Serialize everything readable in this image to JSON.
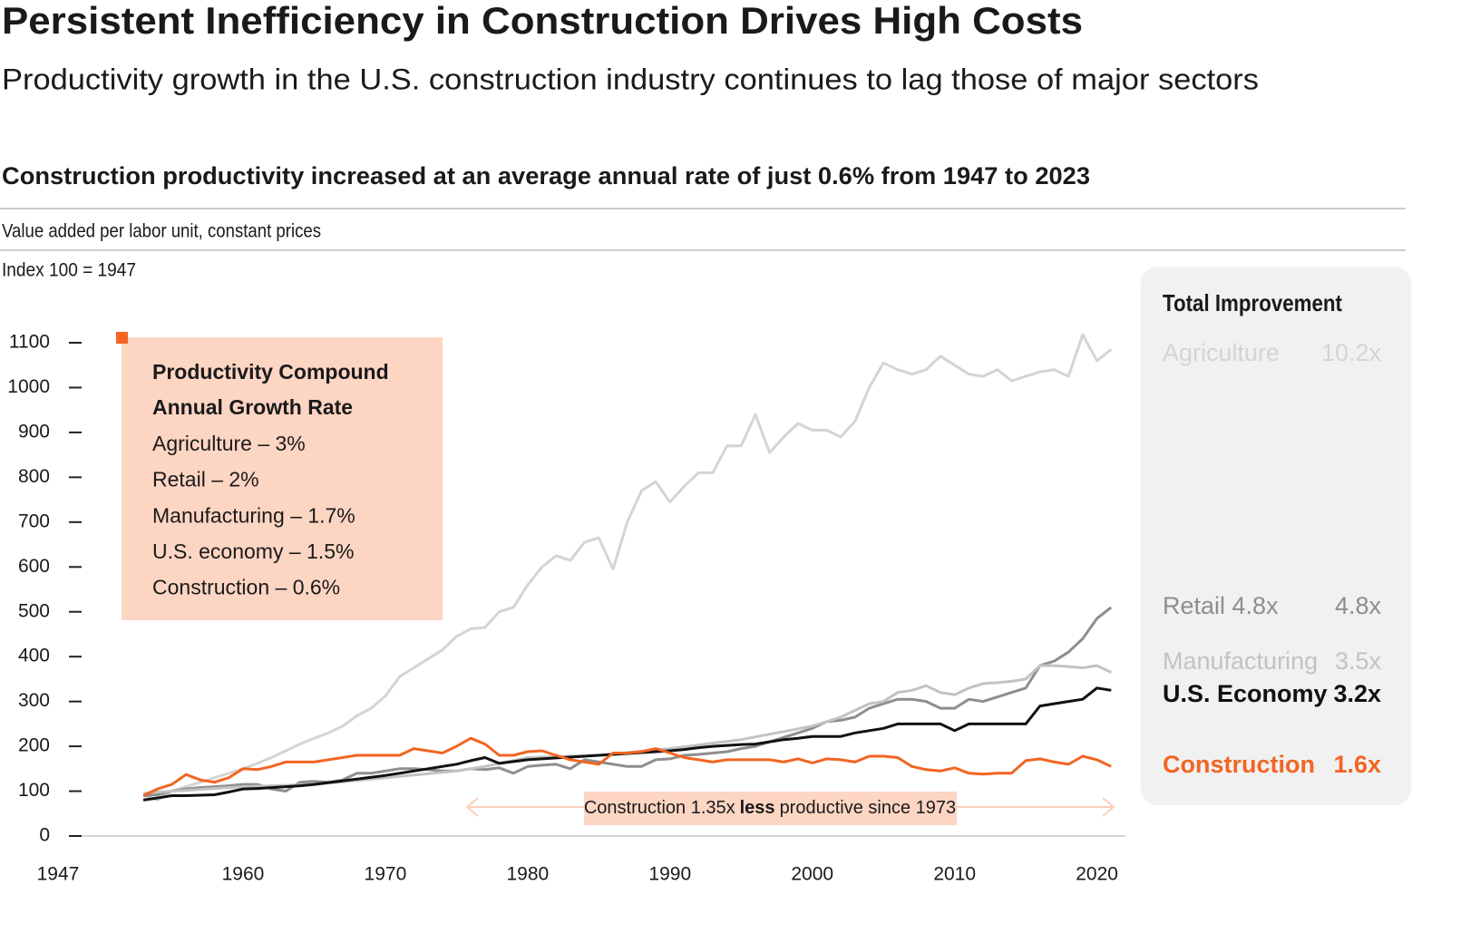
{
  "chart_data": {
    "type": "line",
    "title": "Persistent Inefficiency in Construction Drives High Costs",
    "subtitle": "Productivity growth in the U.S. construction industry continues to lag those of major sectors",
    "heading": "Construction productivity increased at an average annual rate of just 0.6% from 1947 to 2023",
    "notes": [
      "Value added per labor unit, constant prices",
      "Index 100 = 1947"
    ],
    "legend_box": {
      "title": [
        "Productivity Compound",
        "Annual Growth Rate"
      ],
      "lines": [
        "Agriculture – 3%",
        "Retail – 2%",
        "Manufacturing – 1.7%",
        "U.S. economy – 1.5%",
        "Construction – 0.6%"
      ]
    },
    "annotation": [
      "Construction 1.35x",
      "less",
      "productive since 1973"
    ],
    "panel_title": "Total Improvement",
    "xlim": [
      1948.5,
      2022
    ],
    "xticks": [
      1947,
      1960,
      1970,
      1980,
      1990,
      2000,
      2010,
      2020
    ],
    "ylim": [
      0,
      1100
    ],
    "yticks": [
      0,
      100,
      200,
      300,
      400,
      500,
      600,
      700,
      800,
      900,
      1000,
      1100
    ],
    "grid": false,
    "x": [
      1953,
      1954,
      1955,
      1956,
      1957,
      1958,
      1959,
      1960,
      1961,
      1962,
      1963,
      1964,
      1965,
      1966,
      1967,
      1968,
      1969,
      1970,
      1971,
      1972,
      1973,
      1974,
      1975,
      1976,
      1977,
      1978,
      1979,
      1980,
      1981,
      1982,
      1983,
      1984,
      1985,
      1986,
      1987,
      1988,
      1989,
      1990,
      1991,
      1992,
      1993,
      1994,
      1995,
      1996,
      1997,
      1998,
      1999,
      2000,
      2001,
      2002,
      2003,
      2004,
      2005,
      2006,
      2007,
      2008,
      2009,
      2010,
      2011,
      2012,
      2013,
      2014,
      2015,
      2016,
      2017,
      2018,
      2019,
      2020,
      2021
    ],
    "series": [
      {
        "name": "Agriculture",
        "total": "10.2x",
        "color": "#d4d4d4",
        "values": [
          90,
          80,
          100,
          110,
          120,
          130,
          140,
          150,
          162,
          175,
          190,
          205,
          218,
          230,
          245,
          268,
          285,
          312,
          355,
          375,
          395,
          415,
          445,
          462,
          465,
          500,
          510,
          560,
          600,
          625,
          615,
          655,
          665,
          595,
          700,
          770,
          790,
          745,
          780,
          810,
          810,
          870,
          870,
          940,
          855,
          890,
          920,
          905,
          905,
          890,
          925,
          1000,
          1055,
          1040,
          1030,
          1040,
          1070,
          1050,
          1030,
          1025,
          1040,
          1015,
          1025,
          1035,
          1040,
          1025,
          1118,
          1060,
          1085
        ]
      },
      {
        "name": "Retail 4.8x",
        "total": "4.8x",
        "color": "#8e8e8e",
        "values": [
          90,
          92,
          100,
          105,
          108,
          110,
          112,
          115,
          115,
          105,
          100,
          120,
          122,
          120,
          125,
          140,
          140,
          145,
          150,
          150,
          148,
          145,
          145,
          150,
          148,
          152,
          140,
          155,
          158,
          160,
          150,
          170,
          165,
          160,
          155,
          155,
          170,
          172,
          180,
          182,
          185,
          188,
          195,
          200,
          210,
          220,
          230,
          240,
          255,
          258,
          265,
          285,
          295,
          305,
          305,
          300,
          285,
          285,
          305,
          300,
          310,
          320,
          330,
          380,
          390,
          410,
          440,
          485,
          510
        ]
      },
      {
        "name": "Manufacturing",
        "total": "3.5x",
        "color": "#c2c2c2",
        "values": [
          95,
          98,
          100,
          102,
          104,
          106,
          108,
          110,
          111,
          112,
          113,
          114,
          115,
          118,
          121,
          124,
          127,
          130,
          133,
          136,
          139,
          142,
          145,
          150,
          155,
          162,
          168,
          175,
          176,
          177,
          178,
          179,
          180,
          183,
          186,
          189,
          192,
          195,
          199,
          203,
          207,
          211,
          215,
          221,
          227,
          233,
          239,
          245,
          255,
          265,
          280,
          295,
          300,
          320,
          325,
          335,
          320,
          315,
          330,
          340,
          342,
          345,
          350,
          380,
          380,
          378,
          375,
          380,
          365
        ]
      },
      {
        "name": "U.S. Economy",
        "total": "3.2x",
        "color": "#111111",
        "values": [
          80,
          85,
          90,
          90,
          91,
          92,
          98,
          105,
          106,
          108,
          110,
          112,
          115,
          119,
          123,
          127,
          131,
          135,
          140,
          145,
          150,
          155,
          160,
          168,
          175,
          162,
          166,
          170,
          172,
          174,
          176,
          178,
          180,
          182,
          184,
          186,
          188,
          190,
          193,
          197,
          200,
          202,
          204,
          205,
          210,
          215,
          218,
          222,
          222,
          222,
          230,
          235,
          240,
          250,
          250,
          250,
          250,
          235,
          250,
          250,
          250,
          250,
          250,
          290,
          295,
          300,
          305,
          330,
          325
        ]
      },
      {
        "name": "Construction",
        "total": "1.6x",
        "color": "#f26522",
        "values": [
          90,
          105,
          115,
          137,
          125,
          120,
          130,
          150,
          148,
          155,
          165,
          165,
          165,
          170,
          175,
          180,
          180,
          180,
          180,
          195,
          190,
          185,
          200,
          218,
          205,
          180,
          180,
          188,
          190,
          180,
          170,
          165,
          160,
          185,
          185,
          188,
          195,
          185,
          175,
          170,
          165,
          170,
          170,
          170,
          170,
          165,
          172,
          163,
          172,
          170,
          165,
          178,
          178,
          175,
          155,
          148,
          145,
          152,
          140,
          138,
          140,
          140,
          168,
          172,
          165,
          160,
          178,
          170,
          155
        ]
      }
    ]
  }
}
